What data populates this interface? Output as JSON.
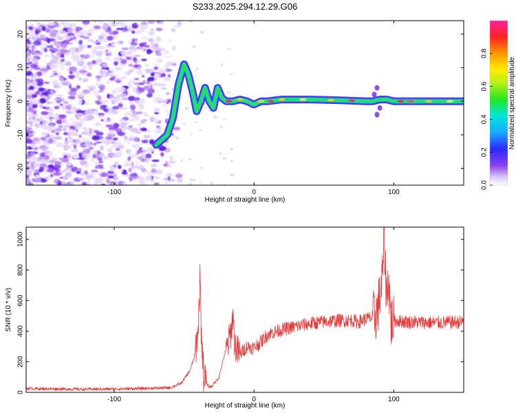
{
  "title": "S233.2025.294.12.29.G06",
  "chart_data": [
    {
      "type": "heatmap",
      "name": "spectrogram",
      "xlabel": "Height of straight line (km)",
      "ylabel": "Frequency (Hz)",
      "xlim": [
        -163,
        150
      ],
      "ylim": [
        -25,
        24
      ],
      "x_ticks": [
        -100,
        0,
        100
      ],
      "x_tick_labels": [
        "-100",
        "0",
        "100"
      ],
      "y_ticks": [
        -20,
        -10,
        0,
        10,
        20
      ],
      "y_tick_labels": [
        "-20",
        "-10",
        "0",
        "10",
        "20"
      ],
      "ridge": {
        "x": [
          -70,
          -62,
          -58,
          -54,
          -50,
          -47,
          -44,
          -41,
          -38,
          -35,
          -32,
          -29,
          -26,
          -23,
          -20,
          -15,
          -10,
          -5,
          0,
          5,
          10,
          20,
          40,
          60,
          80,
          85,
          90,
          95,
          100,
          120,
          150
        ],
        "y": [
          -13,
          -10,
          -5,
          5,
          11,
          8,
          3,
          -3,
          0,
          4,
          0,
          -2,
          4,
          1,
          0,
          0,
          0.5,
          0,
          -1,
          0,
          0,
          0.5,
          0.5,
          0.3,
          0,
          0,
          0.5,
          0.5,
          0,
          0,
          0
        ]
      },
      "colorbar": {
        "label": "Normalized spectral amplitude",
        "range": [
          0.0,
          1.0
        ],
        "ticks": [
          0.0,
          0.2,
          0.4,
          0.6,
          0.8
        ],
        "tick_labels": [
          "0.0",
          "0.2",
          "0.4",
          "0.6",
          "0.8"
        ]
      }
    },
    {
      "type": "line",
      "name": "snr",
      "xlabel": "Height of straight line (km)",
      "ylabel": "SNR (10 * v/v)",
      "xlim": [
        -163,
        150
      ],
      "ylim": [
        0,
        1080
      ],
      "x_ticks": [
        -100,
        0,
        100
      ],
      "x_tick_labels": [
        "-100",
        "0",
        "100"
      ],
      "y_ticks": [
        0,
        200,
        400,
        600,
        800,
        1000
      ],
      "y_tick_labels": [
        "0",
        "200",
        "400",
        "600",
        "800",
        "1000"
      ],
      "series": [
        {
          "name": "SNR",
          "color": "#e83333",
          "x": [
            -163,
            -140,
            -120,
            -100,
            -80,
            -60,
            -52,
            -46,
            -43,
            -41,
            -40,
            -39,
            -38.5,
            -38,
            -37,
            -36,
            -34,
            -32,
            -30,
            -25,
            -21,
            -18,
            -16,
            -15,
            -14,
            -12,
            -10,
            -5,
            0,
            5,
            10,
            20,
            30,
            40,
            50,
            60,
            70,
            75,
            80,
            85,
            88,
            90,
            92,
            93,
            94,
            95,
            96,
            98,
            100,
            110,
            130,
            150
          ],
          "values": [
            25,
            22,
            20,
            22,
            25,
            30,
            60,
            140,
            220,
            320,
            420,
            600,
            860,
            450,
            300,
            120,
            60,
            35,
            40,
            100,
            250,
            330,
            420,
            520,
            330,
            270,
            250,
            300,
            290,
            330,
            380,
            410,
            430,
            450,
            460,
            470,
            470,
            460,
            480,
            490,
            520,
            620,
            750,
            1080,
            800,
            600,
            780,
            460,
            470,
            460,
            455,
            460
          ]
        }
      ]
    }
  ]
}
